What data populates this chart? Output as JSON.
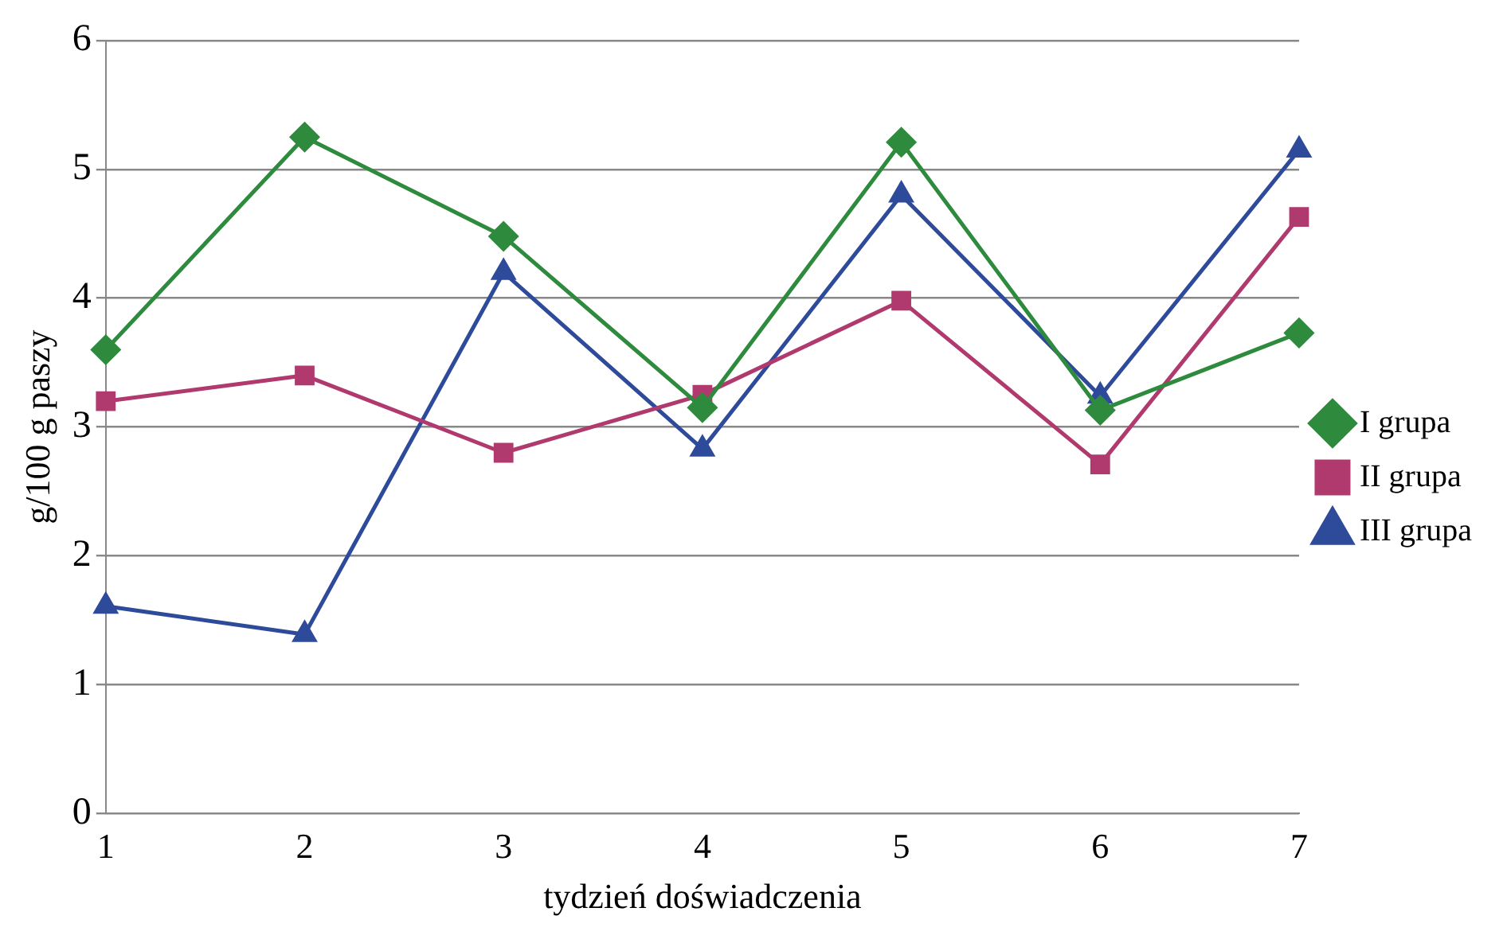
{
  "chart_data": {
    "type": "line",
    "xlabel": "tydzień doświadczenia",
    "ylabel": "g/100 g paszy",
    "categories": [
      "1",
      "2",
      "3",
      "4",
      "5",
      "6",
      "7"
    ],
    "series": [
      {
        "name": "I grupa",
        "color": "#2e8b3e",
        "marker": "diamond",
        "values": [
          3.6,
          5.25,
          4.48,
          3.15,
          5.21,
          3.13,
          3.73
        ]
      },
      {
        "name": "II grupa",
        "color": "#b03a6e",
        "marker": "square",
        "values": [
          3.2,
          3.4,
          2.8,
          3.25,
          3.98,
          2.71,
          4.63
        ]
      },
      {
        "name": "III grupa",
        "color": "#2e4a9a",
        "marker": "triangle",
        "values": [
          1.61,
          1.39,
          4.2,
          2.83,
          4.8,
          3.24,
          5.15
        ]
      }
    ],
    "ylim": [
      0,
      6
    ],
    "yticks": [
      0,
      1,
      2,
      3,
      4,
      5,
      6
    ],
    "grid": "y",
    "legend": "right",
    "line_style": "solid"
  }
}
